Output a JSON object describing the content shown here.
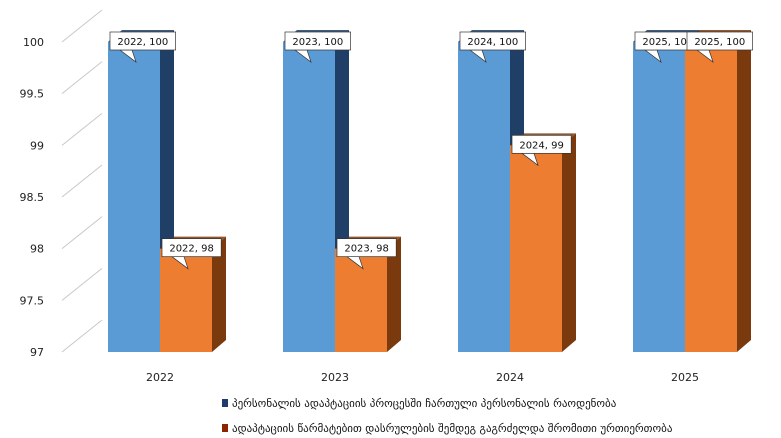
{
  "chart_data": {
    "type": "bar",
    "subtype": "3d-clustered-column",
    "categories": [
      "2022",
      "2023",
      "2024",
      "2025"
    ],
    "series": [
      {
        "name": "პერსონალის ადაპტაციის პროცესში ჩართული პერსონალის რაოდენობა",
        "values": [
          100,
          100,
          100,
          100
        ],
        "color": "#5B9BD5",
        "side_color": "#1F3F66",
        "legend_color": "#1F3A6E",
        "data_labels": [
          "2022, 100",
          "2023, 100",
          "2024, 100",
          "2025, 100"
        ]
      },
      {
        "name": "ადაპტაციის წარმატებით დასრულების შემდეგ გაგრძელდა შრომითი ურთიერთობა",
        "values": [
          98,
          98,
          99,
          100
        ],
        "color": "#ED7D31",
        "side_color": "#7A3A0E",
        "legend_color": "#8B2500",
        "data_labels": [
          "2022, 98",
          "2023, 98",
          "2024, 99",
          "2025, 100"
        ]
      }
    ],
    "ylim": [
      97,
      100
    ],
    "yticks": [
      "97",
      "97.5",
      "98",
      "98.5",
      "99",
      "99.5",
      "100"
    ],
    "ytick_values": [
      97,
      97.5,
      98,
      98.5,
      99,
      99.5,
      100
    ],
    "grid": true,
    "gridline_color": "#c8c8c8",
    "legend_position": "bottom",
    "title": "",
    "xlabel": "",
    "ylabel": ""
  }
}
